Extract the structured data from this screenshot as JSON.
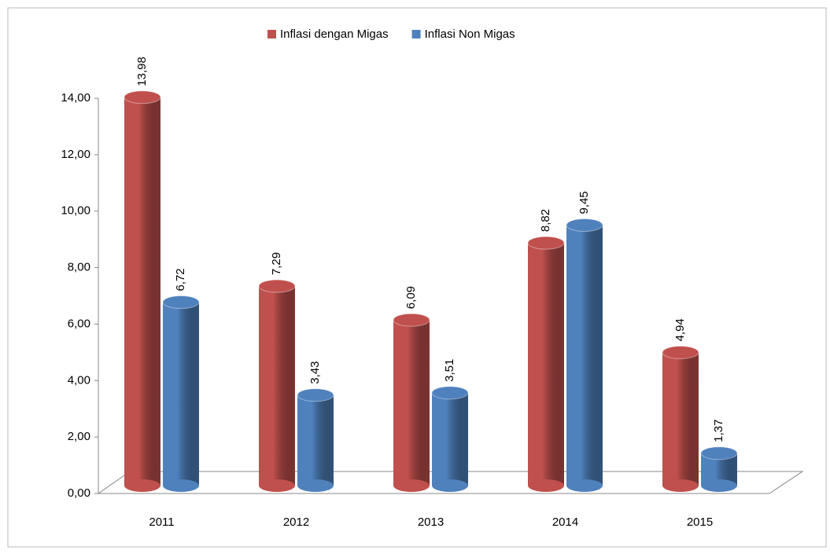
{
  "chart_data": {
    "type": "bar",
    "categories": [
      "2011",
      "2012",
      "2013",
      "2014",
      "2015"
    ],
    "series": [
      {
        "name": "Inflasi dengan Migas",
        "color": "#c0504d",
        "values": [
          13.98,
          7.29,
          6.09,
          8.82,
          4.94
        ],
        "value_labels": [
          "13,98",
          "7,29",
          "6,09",
          "8,82",
          "4,94"
        ]
      },
      {
        "name": "Inflasi Non Migas",
        "color": "#4f81bd",
        "values": [
          6.72,
          3.43,
          3.51,
          9.45,
          1.37
        ],
        "value_labels": [
          "6,72",
          "3,43",
          "3,51",
          "9,45",
          "1,37"
        ]
      }
    ],
    "ylim": [
      0,
      14
    ],
    "yticks": [
      {
        "value": 0,
        "label": "0,00"
      },
      {
        "value": 2,
        "label": "2,00"
      },
      {
        "value": 4,
        "label": "4,00"
      },
      {
        "value": 6,
        "label": "6,00"
      },
      {
        "value": 8,
        "label": "8,00"
      },
      {
        "value": 10,
        "label": "10,00"
      },
      {
        "value": 12,
        "label": "12,00"
      },
      {
        "value": 14,
        "label": "14,00"
      }
    ],
    "legend": "top"
  }
}
